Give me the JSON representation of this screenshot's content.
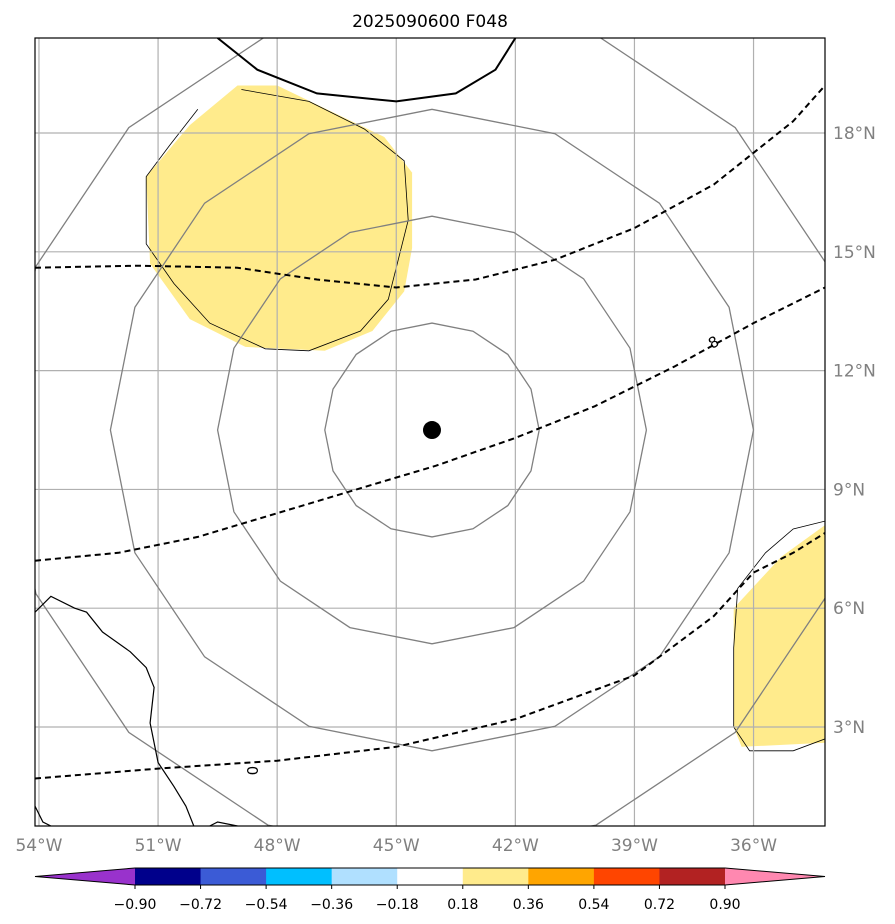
{
  "figure": {
    "title": "2025090600 F048"
  },
  "map": {
    "lon_range": [
      -54.1,
      -34.2
    ],
    "lat_range": [
      0.5,
      20.4
    ],
    "lon_ticks": [
      {
        "value": -54,
        "label": "54°W"
      },
      {
        "value": -51,
        "label": "51°W"
      },
      {
        "value": -48,
        "label": "48°W"
      },
      {
        "value": -45,
        "label": "45°W"
      },
      {
        "value": -42,
        "label": "42°W"
      },
      {
        "value": -39,
        "label": "39°W"
      },
      {
        "value": -36,
        "label": "36°W"
      }
    ],
    "lat_ticks": [
      {
        "value": 18,
        "label": "18°N"
      },
      {
        "value": 15,
        "label": "15°N"
      },
      {
        "value": 12,
        "label": "12°N"
      },
      {
        "value": 9,
        "label": "9°N"
      },
      {
        "value": 6,
        "label": "6°N"
      },
      {
        "value": 3,
        "label": "3°N"
      }
    ],
    "gridlines": true,
    "center_marker": {
      "lon": -44.1,
      "lat": 10.5
    },
    "range_rings_deg": [
      2.7,
      5.4,
      8.1,
      10.8
    ],
    "contour_labels": [
      {
        "text": "8",
        "lon": -37.0,
        "lat": 12.7,
        "rotation": -28
      },
      {
        "text": "0",
        "lon": -48.6,
        "lat": 1.9,
        "rotation": -90
      }
    ],
    "dashed_contours": [
      [
        [
          -54.1,
          14.6
        ],
        [
          -51.5,
          14.65
        ],
        [
          -49.0,
          14.6
        ],
        [
          -47.0,
          14.3
        ],
        [
          -45.0,
          14.1
        ],
        [
          -43.0,
          14.3
        ],
        [
          -41.0,
          14.8
        ],
        [
          -39.0,
          15.6
        ],
        [
          -37.0,
          16.7
        ],
        [
          -35.0,
          18.3
        ],
        [
          -34.2,
          19.2
        ]
      ],
      [
        [
          -54.1,
          7.2
        ],
        [
          -52.0,
          7.4
        ],
        [
          -50.0,
          7.8
        ],
        [
          -48.0,
          8.4
        ],
        [
          -46.0,
          9.0
        ],
        [
          -44.0,
          9.6
        ],
        [
          -42.0,
          10.3
        ],
        [
          -40.0,
          11.1
        ],
        [
          -38.0,
          12.1
        ],
        [
          -36.0,
          13.2
        ],
        [
          -34.2,
          14.1
        ]
      ],
      [
        [
          -54.1,
          1.7
        ],
        [
          -51.0,
          1.95
        ],
        [
          -48.0,
          2.15
        ],
        [
          -45.0,
          2.5
        ],
        [
          -42.0,
          3.2
        ],
        [
          -39.0,
          4.3
        ],
        [
          -37.0,
          5.8
        ],
        [
          -36.0,
          6.9
        ],
        [
          -35.0,
          7.4
        ],
        [
          -34.2,
          7.9
        ]
      ]
    ],
    "solid_contour": [
      [
        -49.5,
        20.4
      ],
      [
        -48.5,
        19.6
      ],
      [
        -47.0,
        19.0
      ],
      [
        -45.0,
        18.8
      ],
      [
        -43.5,
        19.0
      ],
      [
        -42.5,
        19.6
      ],
      [
        -42.0,
        20.4
      ]
    ],
    "shaded_regions": [
      {
        "color": "#ffeb8c",
        "points": [
          [
            -49.0,
            19.2
          ],
          [
            -48.0,
            19.2
          ],
          [
            -45.3,
            17.9
          ],
          [
            -44.6,
            17.0
          ],
          [
            -44.6,
            15.1
          ],
          [
            -44.8,
            14.0
          ],
          [
            -45.6,
            13.0
          ],
          [
            -46.8,
            12.5
          ],
          [
            -48.8,
            12.6
          ],
          [
            -50.2,
            13.3
          ],
          [
            -51.2,
            14.7
          ],
          [
            -51.3,
            16.9
          ],
          [
            -50.2,
            18.2
          ]
        ]
      },
      {
        "color": "#ffeb8c",
        "points": [
          [
            -34.2,
            8.1
          ],
          [
            -35.3,
            7.3
          ],
          [
            -36.5,
            6.0
          ],
          [
            -36.5,
            3.0
          ],
          [
            -36.3,
            2.5
          ],
          [
            -34.2,
            2.6
          ]
        ]
      }
    ],
    "shaded_outline": [
      [
        [
          -48.9,
          19.1
        ],
        [
          -47.2,
          18.8
        ],
        [
          -45.8,
          18.1
        ],
        [
          -44.8,
          17.3
        ],
        [
          -44.7,
          15.8
        ],
        [
          -45.2,
          13.8
        ],
        [
          -45.9,
          13.0
        ],
        [
          -47.2,
          12.5
        ],
        [
          -48.3,
          12.55
        ],
        [
          -49.7,
          13.2
        ],
        [
          -50.6,
          14.2
        ],
        [
          -51.3,
          15.2
        ],
        [
          -51.3,
          16.9
        ],
        [
          -50.7,
          17.7
        ],
        [
          -50.0,
          18.6
        ]
      ],
      [
        [
          -34.2,
          8.2
        ],
        [
          -35.0,
          8.0
        ],
        [
          -35.7,
          7.4
        ],
        [
          -36.4,
          6.5
        ],
        [
          -36.5,
          5.0
        ],
        [
          -36.5,
          3.0
        ],
        [
          -36.1,
          2.4
        ],
        [
          -35.0,
          2.4
        ],
        [
          -34.2,
          2.7
        ]
      ]
    ],
    "coastline": [
      [
        [
          -54.1,
          5.9
        ],
        [
          -53.7,
          6.3
        ],
        [
          -53.1,
          6.0
        ],
        [
          -52.8,
          5.9
        ],
        [
          -52.4,
          5.4
        ],
        [
          -51.7,
          4.9
        ],
        [
          -51.3,
          4.5
        ],
        [
          -51.1,
          4.0
        ],
        [
          -51.2,
          3.1
        ],
        [
          -51.0,
          2.1
        ],
        [
          -50.6,
          1.5
        ],
        [
          -50.3,
          1.0
        ],
        [
          -50.1,
          0.5
        ]
      ],
      [
        [
          -49.0,
          0.5
        ],
        [
          -49.5,
          0.6
        ],
        [
          -49.7,
          0.5
        ]
      ],
      [
        [
          -54.1,
          1.0
        ],
        [
          -53.9,
          0.6
        ],
        [
          -53.7,
          0.5
        ]
      ]
    ]
  },
  "colorbar": {
    "ticks": [
      "−0.90",
      "−0.72",
      "−0.54",
      "−0.36",
      "−0.18",
      "0.18",
      "0.36",
      "0.54",
      "0.72",
      "0.90"
    ],
    "colors": [
      "#9932cc",
      "#00008b",
      "#3b5bd6",
      "#00bfff",
      "#b0e0ff",
      "#ffffff",
      "#ffeb8c",
      "#ffa500",
      "#ff4500",
      "#b22222",
      "#ff88b0",
      "#ff88b0"
    ]
  }
}
